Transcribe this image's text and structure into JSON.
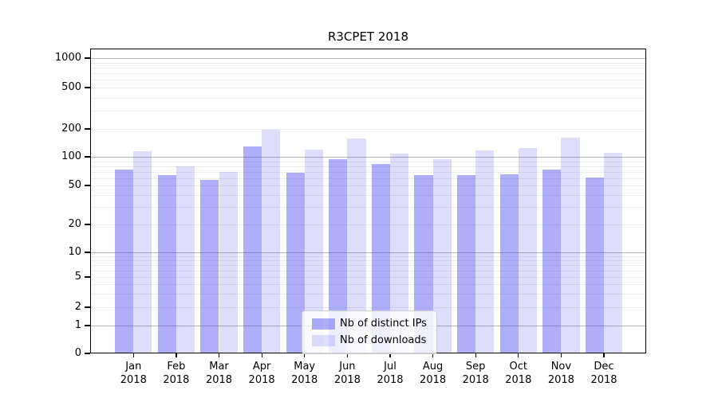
{
  "figure": {
    "background": "#ffffff"
  },
  "chart_data": {
    "type": "bar",
    "title": "R3CPET 2018",
    "categories": [
      "Jan",
      "Feb",
      "Mar",
      "Apr",
      "May",
      "Jun",
      "Jul",
      "Aug",
      "Sep",
      "Oct",
      "Nov",
      "Dec"
    ],
    "x_tick_year": "2018",
    "series": [
      {
        "name": "Nb of distinct IPs",
        "color": "rgba(62,62,240,0.42)",
        "values": [
          74,
          64,
          57,
          129,
          68,
          95,
          84,
          64,
          64,
          66,
          74,
          61
        ]
      },
      {
        "name": "Nb of downloads",
        "color": "rgba(62,62,240,0.17)",
        "values": [
          115,
          79,
          70,
          195,
          120,
          158,
          108,
          94,
          117,
          124,
          162,
          110
        ]
      }
    ],
    "xlabel": "",
    "ylabel": "",
    "y_scale": "symlog",
    "ylim": [
      0,
      1250
    ],
    "y_ticks": [
      0,
      1,
      2,
      5,
      10,
      20,
      50,
      100,
      200,
      500,
      1000
    ],
    "grid": {
      "enabled": true,
      "major_values": [
        1,
        10,
        100,
        1000
      ],
      "minor_values": [
        2,
        3,
        4,
        5,
        6,
        7,
        8,
        9,
        20,
        30,
        40,
        50,
        60,
        70,
        80,
        90,
        200,
        300,
        400,
        500,
        600,
        700,
        800,
        900
      ],
      "major_color": "#b5b5b5",
      "minor_color": "#ececec"
    },
    "legend_position": "lower-center-inside",
    "text_color": "#000000",
    "spine_color": "#000000"
  }
}
